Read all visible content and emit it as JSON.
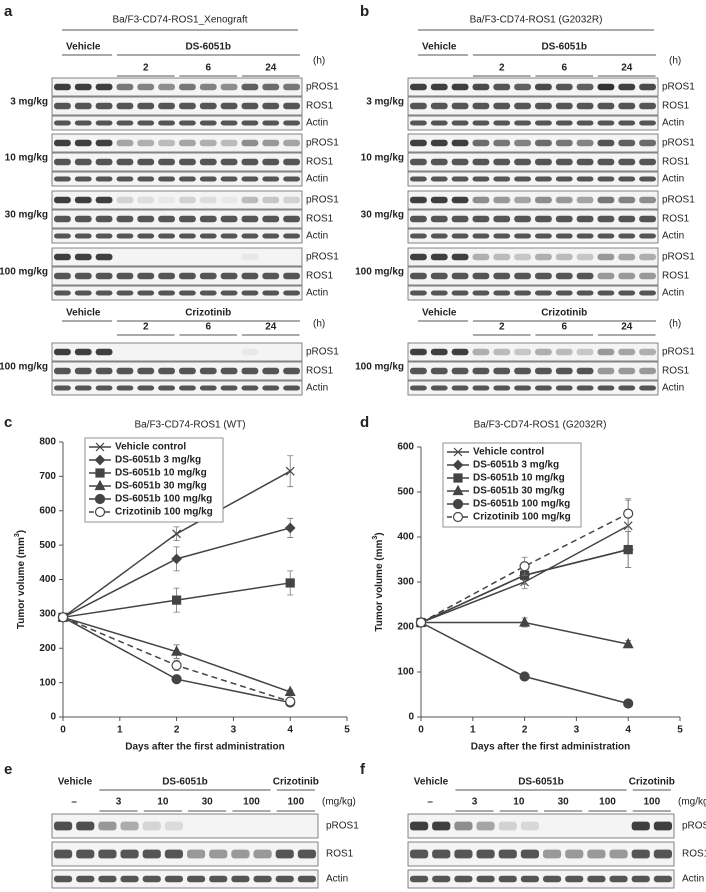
{
  "blot_a": {
    "letter": "a",
    "title": "Ba/F3-CD74-ROS1_Xenograft",
    "groups": [
      {
        "vehicle": "Vehicle",
        "drug": "DS-6051b",
        "unit": "(h)",
        "times": [
          "2",
          "6",
          "24"
        ],
        "doses": [
          {
            "label": "3 mg/kg",
            "rows": [
              "pROS1",
              "ROS1",
              "Actin"
            ]
          },
          {
            "label": "10 mg/kg",
            "rows": [
              "pROS1",
              "ROS1",
              "Actin"
            ]
          },
          {
            "label": "30 mg/kg",
            "rows": [
              "pROS1",
              "ROS1",
              "Actin"
            ]
          },
          {
            "label": "100 mg/kg",
            "rows": [
              "pROS1",
              "ROS1",
              "Actin"
            ]
          }
        ]
      },
      {
        "vehicle": "Vehicle",
        "drug": "Crizotinib",
        "unit": "(h)",
        "times": [
          "2",
          "6",
          "24"
        ],
        "doses": [
          {
            "label": "100 mg/kg",
            "rows": [
              "pROS1",
              "ROS1",
              "Actin"
            ]
          }
        ]
      }
    ]
  },
  "blot_b": {
    "letter": "b",
    "title": "Ba/F3-CD74-ROS1 (G2032R)",
    "groups": [
      {
        "vehicle": "Vehicle",
        "drug": "DS-6051b",
        "unit": "(h)",
        "times": [
          "2",
          "6",
          "24"
        ],
        "doses": [
          {
            "label": "3 mg/kg",
            "rows": [
              "pROS1",
              "ROS1",
              "Actin"
            ]
          },
          {
            "label": "10 mg/kg",
            "rows": [
              "pROS1",
              "ROS1",
              "Actin"
            ]
          },
          {
            "label": "30 mg/kg",
            "rows": [
              "pROS1",
              "ROS1",
              "Actin"
            ]
          },
          {
            "label": "100 mg/kg",
            "rows": [
              "pROS1",
              "ROS1",
              "Actin"
            ]
          }
        ]
      },
      {
        "vehicle": "Vehicle",
        "drug": "Crizotinib",
        "unit": "(h)",
        "times": [
          "2",
          "6",
          "24"
        ],
        "doses": [
          {
            "label": "100 mg/kg",
            "rows": [
              "pROS1",
              "ROS1",
              "Actin"
            ]
          }
        ]
      }
    ]
  },
  "chart_data": [
    {
      "type": "line",
      "letter": "c",
      "title": "Ba/F3-CD74-ROS1 (WT)",
      "xlabel": "Days after the first administration",
      "ylabel": "Tumor volume (mm",
      "ylabel_sup": "3",
      "ylabel_end": ")",
      "x": [
        0,
        2,
        4
      ],
      "xlim": [
        0,
        5
      ],
      "xticks": [
        0,
        1,
        2,
        3,
        4,
        5
      ],
      "ylim": [
        0,
        800
      ],
      "yticks": [
        0,
        100,
        200,
        300,
        400,
        500,
        600,
        700,
        800
      ],
      "legend": "upper left",
      "series": [
        {
          "name": "Vehicle control",
          "color": "#444444",
          "marker": "x",
          "dash": false,
          "values": [
            290,
            533,
            715
          ],
          "errors": [
            null,
            20,
            45
          ]
        },
        {
          "name": "DS-6051b 3 mg/kg",
          "color": "#444444",
          "marker": "diamond",
          "dash": false,
          "values": [
            290,
            460,
            550
          ],
          "errors": [
            null,
            35,
            28
          ]
        },
        {
          "name": "DS-6051b 10 mg/kg",
          "color": "#444444",
          "marker": "square",
          "dash": false,
          "values": [
            290,
            340,
            390
          ],
          "errors": [
            null,
            35,
            35
          ]
        },
        {
          "name": "DS-6051b 30 mg/kg",
          "color": "#444444",
          "marker": "triangle",
          "dash": false,
          "values": [
            290,
            190,
            73
          ],
          "errors": [
            null,
            20,
            6
          ]
        },
        {
          "name": "DS-6051b 100 mg/kg",
          "color": "#444444",
          "marker": "circle",
          "dash": false,
          "values": [
            290,
            110,
            42
          ],
          "errors": [
            null,
            8,
            5
          ]
        },
        {
          "name": "Crizotinib 100 mg/kg",
          "color": "#444444",
          "marker": "open-circle",
          "dash": true,
          "values": [
            290,
            150,
            45
          ],
          "errors": [
            null,
            15,
            6
          ]
        }
      ]
    },
    {
      "type": "line",
      "letter": "d",
      "title": "Ba/F3-CD74-ROS1 (G2032R)",
      "xlabel": "Days after the first administration",
      "ylabel": "Tumor volume (mm",
      "ylabel_sup": "3",
      "ylabel_end": ")",
      "x": [
        0,
        2,
        4
      ],
      "xlim": [
        0,
        5
      ],
      "xticks": [
        0,
        1,
        2,
        3,
        4,
        5
      ],
      "ylim": [
        0,
        600
      ],
      "yticks": [
        0,
        100,
        200,
        300,
        400,
        500,
        600
      ],
      "legend": "upper left",
      "series": [
        {
          "name": "Vehicle control",
          "color": "#444444",
          "marker": "x",
          "dash": false,
          "values": [
            210,
            300,
            425
          ],
          "errors": [
            null,
            15,
            60
          ]
        },
        {
          "name": "DS-6051b 3 mg/kg",
          "color": "#444444",
          "marker": "diamond",
          "dash": false,
          "values": [
            210,
            315,
            372
          ],
          "errors": [
            null,
            20,
            40
          ]
        },
        {
          "name": "DS-6051b 10 mg/kg",
          "color": "#444444",
          "marker": "square",
          "dash": false,
          "values": [
            210,
            315,
            372
          ],
          "errors": [
            null,
            20,
            40
          ]
        },
        {
          "name": "DS-6051b 30 mg/kg",
          "color": "#444444",
          "marker": "triangle",
          "dash": false,
          "values": [
            210,
            210,
            162
          ],
          "errors": [
            null,
            10,
            8
          ]
        },
        {
          "name": "DS-6051b 100 mg/kg",
          "color": "#444444",
          "marker": "circle",
          "dash": false,
          "values": [
            210,
            90,
            30
          ],
          "errors": [
            null,
            5,
            4
          ]
        },
        {
          "name": "Crizotinib 100 mg/kg",
          "color": "#444444",
          "marker": "open-circle",
          "dash": true,
          "values": [
            210,
            335,
            452
          ],
          "errors": [
            null,
            20,
            30
          ]
        }
      ]
    }
  ],
  "blot_e": {
    "letter": "e",
    "vehicle": "Vehicle",
    "drug": "DS-6051b",
    "drug2": "Crizotinib",
    "unit": "(mg/kg)",
    "doses": [
      "–",
      "3",
      "10",
      "30",
      "100",
      "100"
    ],
    "rows": [
      "pROS1",
      "ROS1",
      "Actin"
    ]
  },
  "blot_f": {
    "letter": "f",
    "vehicle": "Vehicle",
    "drug": "DS-6051b",
    "drug2": "Crizotinib",
    "unit": "(mg/kg)",
    "doses": [
      "–",
      "3",
      "10",
      "30",
      "100",
      "100"
    ],
    "rows": [
      "pROS1",
      "ROS1",
      "Actin"
    ]
  }
}
